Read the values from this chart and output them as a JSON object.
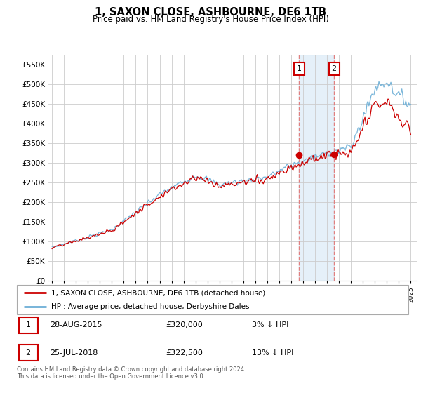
{
  "title": "1, SAXON CLOSE, ASHBOURNE, DE6 1TB",
  "subtitle": "Price paid vs. HM Land Registry's House Price Index (HPI)",
  "legend_line1": "1, SAXON CLOSE, ASHBOURNE, DE6 1TB (detached house)",
  "legend_line2": "HPI: Average price, detached house, Derbyshire Dales",
  "annotation1_date": "28-AUG-2015",
  "annotation1_price": "£320,000",
  "annotation1_hpi": "3% ↓ HPI",
  "annotation2_date": "25-JUL-2018",
  "annotation2_price": "£322,500",
  "annotation2_hpi": "13% ↓ HPI",
  "footnote": "Contains HM Land Registry data © Crown copyright and database right 2024.\nThis data is licensed under the Open Government Licence v3.0.",
  "hpi_color": "#6baed6",
  "price_color": "#cc0000",
  "vline_color": "#e08080",
  "shade_color": "#daeaf7",
  "sale1_year": 2015.667,
  "sale1_price": 320000,
  "sale2_year": 2018.583,
  "sale2_price": 322500,
  "ylim": [
    0,
    575000
  ],
  "yticks": [
    0,
    50000,
    100000,
    150000,
    200000,
    250000,
    300000,
    350000,
    400000,
    450000,
    500000,
    550000
  ],
  "xmin": 1994.7,
  "xmax": 2025.5
}
